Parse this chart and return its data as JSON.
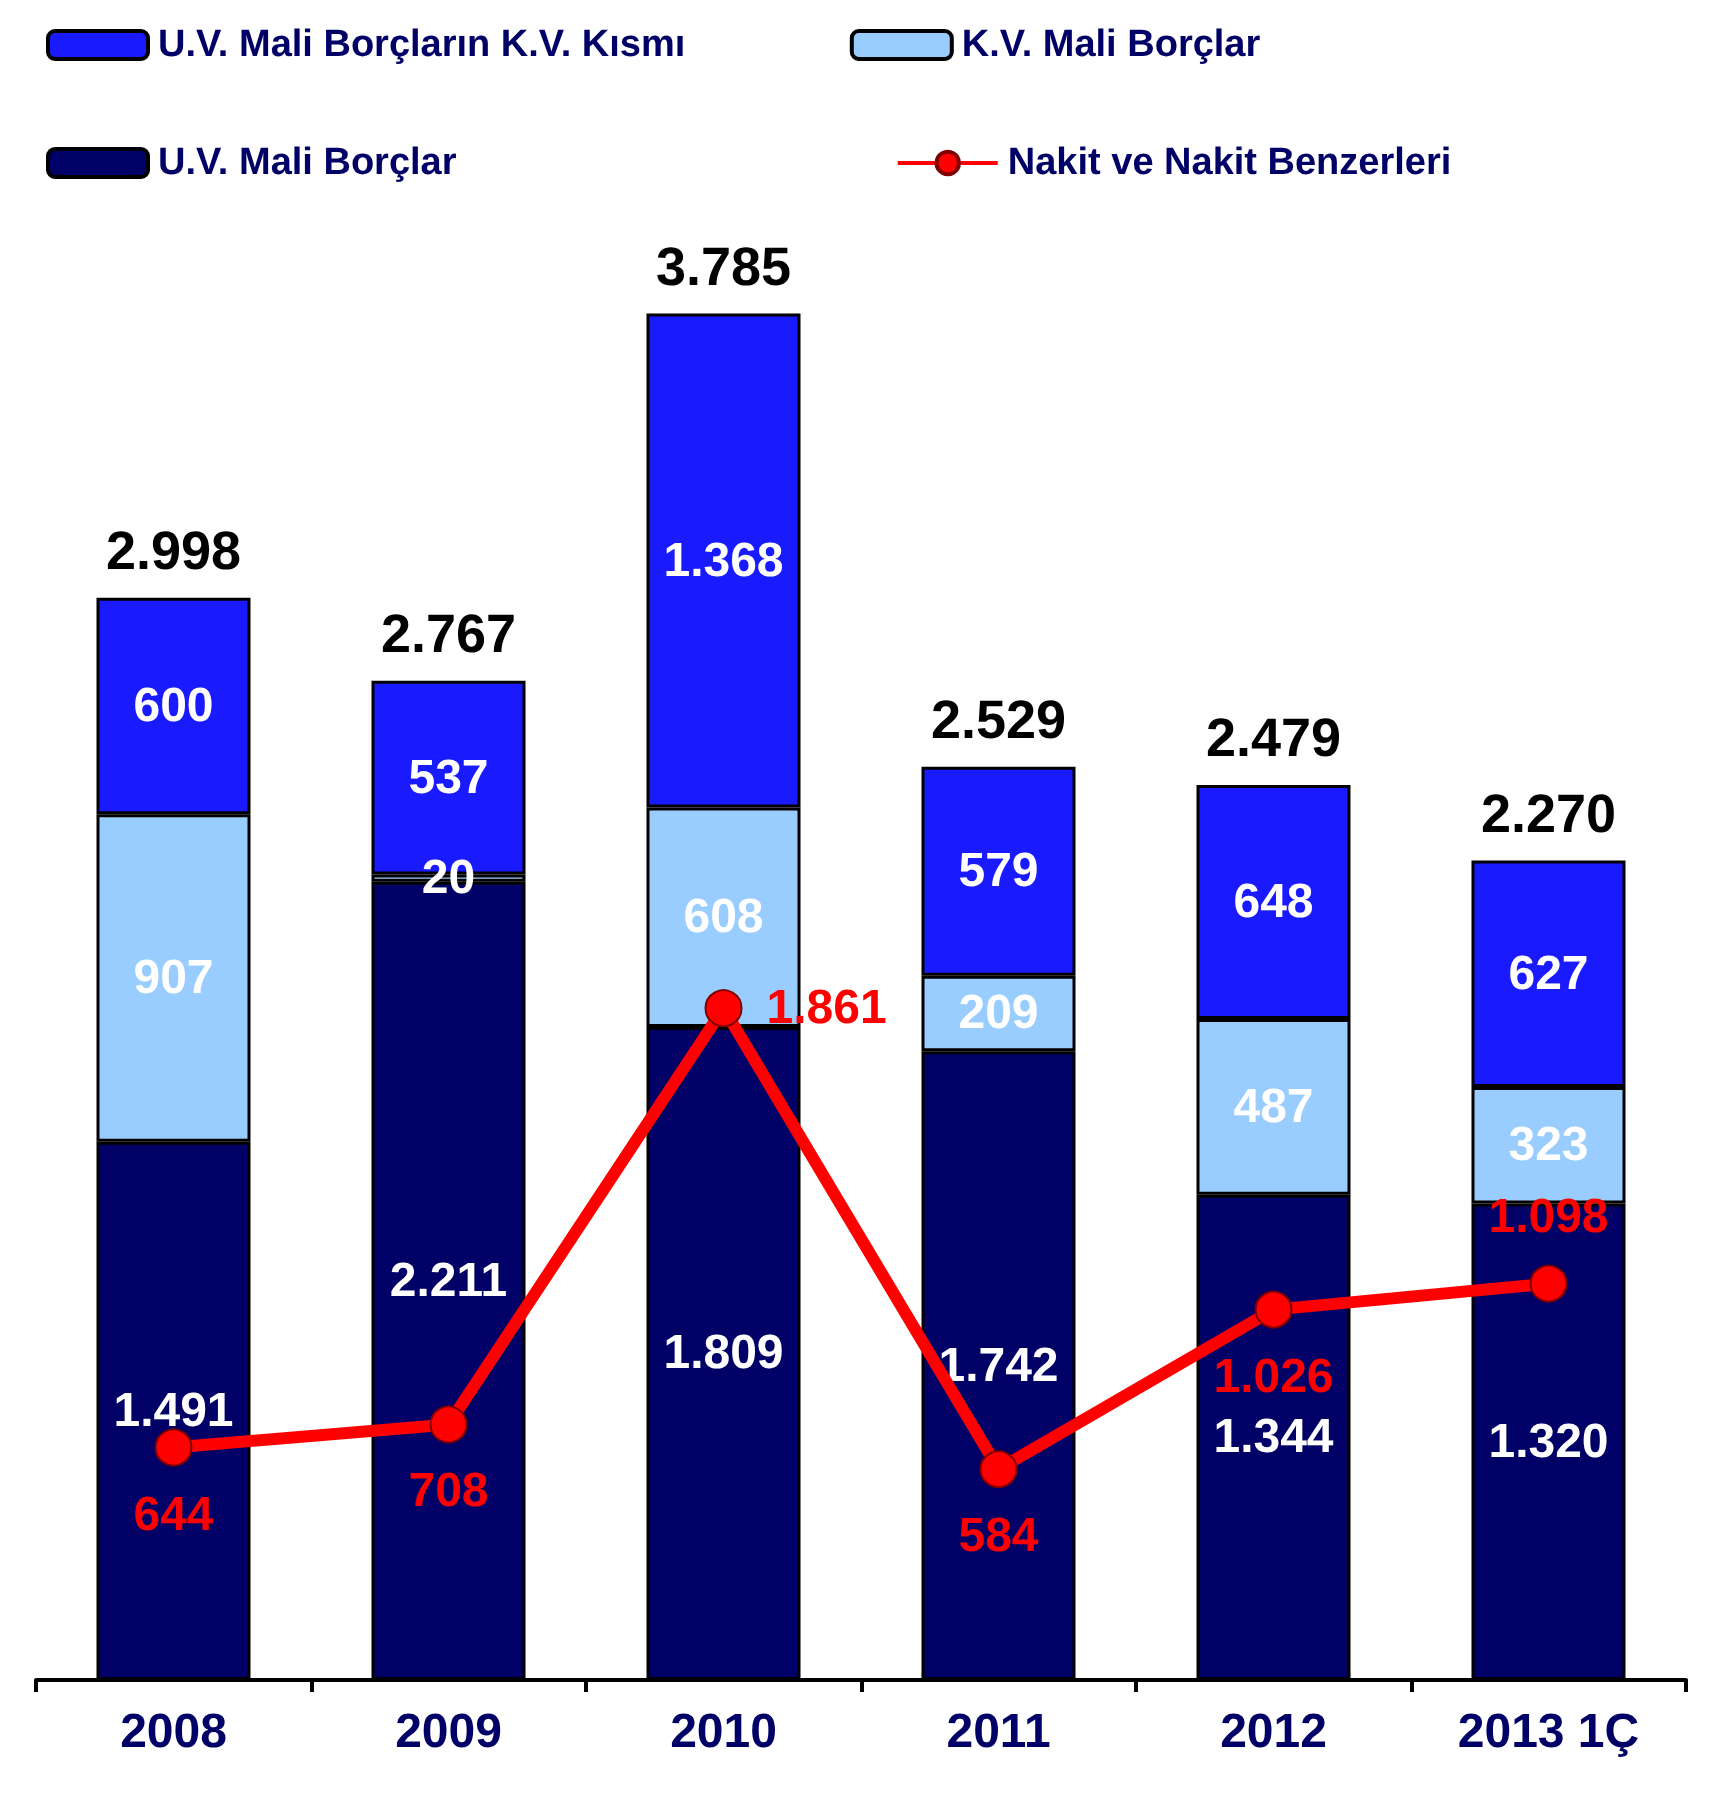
{
  "chart_data": {
    "type": "bar",
    "stacked": true,
    "categories": [
      "2008",
      "2009",
      "2010",
      "2011",
      "2012",
      "2013 1Ç"
    ],
    "series": [
      {
        "name": "U.V. Mali Borçlar",
        "color": "#000066",
        "values": [
          1491,
          2211,
          1809,
          1742,
          1344,
          1320
        ],
        "value_labels": [
          "1.491",
          "2.211",
          "1.809",
          "1.742",
          "1.344",
          "1.320"
        ]
      },
      {
        "name": "K.V. Mali Borçlar",
        "color": "#99ccff",
        "values": [
          907,
          20,
          608,
          209,
          487,
          323
        ],
        "value_labels": [
          "907",
          "20",
          "608",
          "209",
          "487",
          "323"
        ]
      },
      {
        "name": "U.V. Mali Borçların K.V. Kısmı",
        "color": "#1a1aff",
        "values": [
          600,
          537,
          1368,
          579,
          648,
          627
        ],
        "value_labels": [
          "600",
          "537",
          "1.368",
          "579",
          "648",
          "627"
        ]
      },
      {
        "name": "Nakit ve Nakit Benzerleri",
        "type": "line",
        "color": "#ff0000",
        "marker": "circle",
        "values": [
          644,
          708,
          1861,
          584,
          1026,
          1098
        ],
        "value_labels": [
          "644",
          "708",
          "1.861",
          "584",
          "1.026",
          "1.098"
        ]
      }
    ],
    "totals": [
      "2.998",
      "2.767",
      "3.785",
      "2.529",
      "2.479",
      "2.270"
    ],
    "legend": "top",
    "grid": false,
    "tick_labels": "x"
  }
}
